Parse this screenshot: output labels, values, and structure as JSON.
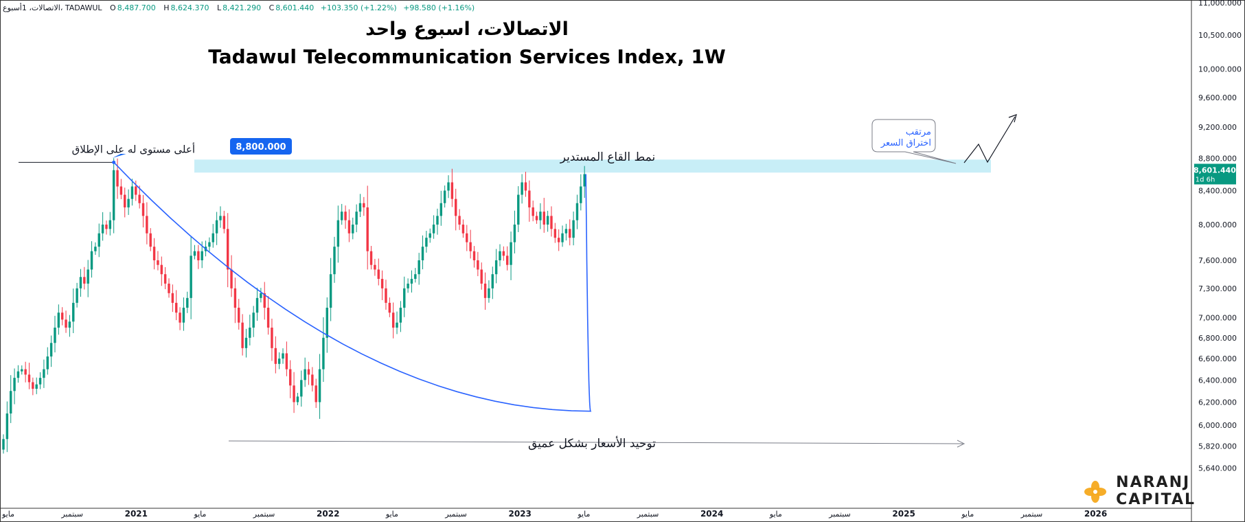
{
  "header": {
    "symbol_prefix": "الاتصالات، 1أسبوع،",
    "exchange": "TADAWUL",
    "open_label": "O",
    "open": "8,487.700",
    "high_label": "H",
    "high": "8,624.370",
    "low_label": "L",
    "low": "8,421.290",
    "close_label": "C",
    "close": "8,601.440",
    "change": "+103.350 (+1.22%)",
    "change2": "+98.580 (+1.16%)"
  },
  "title_ar": "الاتصالات، اسبوع واحد",
  "title_en": "Tadawul Telecommunication Services Index, 1W",
  "annotations": {
    "ath_label": "أعلى مستوى له على الإطلاق",
    "ath_price": "8,800.000",
    "rounding_bottom": "نمط القاع المستدير",
    "consolidation": "توحيد الأسعار بشكل عميق",
    "breakout_line1": "مرتقب",
    "breakout_line2": "اختراق السعر"
  },
  "price_tag": {
    "value": "8,601.440",
    "countdown": "1d 6h"
  },
  "logo": {
    "line1": "NARANJ",
    "line2": "CAPITAL"
  },
  "colors": {
    "up": "#089981",
    "down": "#f23645",
    "curve": "#2962ff",
    "zone": "#c8eef7",
    "tag": "#1565f0"
  },
  "chart_data": {
    "type": "candlestick",
    "title": "Tadawul Telecommunication Services Index, 1W",
    "y_scale": "log",
    "ylim": [
      5500,
      11000
    ],
    "y_ticks": [
      "11,000.000",
      "10,500.000",
      "10,000.000",
      "9,600.000",
      "9,200.000",
      "8,800.000",
      "8,400.000",
      "8,000.000",
      "7,600.000",
      "7,300.000",
      "7,000.000",
      "6,800.000",
      "6,600.000",
      "6,400.000",
      "6,200.000",
      "6,000.000",
      "5,820.000",
      "5,640.000"
    ],
    "y_tick_values": [
      11000,
      10500,
      10000,
      9600,
      9200,
      8800,
      8400,
      8000,
      7600,
      7300,
      7000,
      6800,
      6600,
      6400,
      6200,
      6000,
      5820,
      5640
    ],
    "x_ticks": [
      "مايو",
      "سبتمبر",
      "2021",
      "مايو",
      "سبتمبر",
      "2022",
      "مايو",
      "سبتمبر",
      "2023",
      "مايو",
      "سبتمبر",
      "2024",
      "مايو",
      "سبتمبر",
      "2025",
      "مايو",
      "سبتمبر",
      "2026"
    ],
    "x_tick_dates": [
      "2020-05",
      "2020-09",
      "2021-01",
      "2021-05",
      "2021-09",
      "2022-01",
      "2022-05",
      "2022-09",
      "2023-01",
      "2023-05",
      "2023-09",
      "2024-01",
      "2024-05",
      "2024-09",
      "2025-01",
      "2025-05",
      "2025-09",
      "2026-01"
    ],
    "x_range_dates": [
      "2020-05",
      "2026-06"
    ],
    "resistance_zone": [
      8620,
      8800
    ],
    "all_time_high": 8800,
    "last_close": 8601.44,
    "series_start_date": "2020-05",
    "closes": [
      5880,
      6100,
      6300,
      6420,
      6480,
      6500,
      6450,
      6380,
      6320,
      6360,
      6420,
      6500,
      6620,
      6750,
      6900,
      7050,
      6980,
      6900,
      6960,
      7150,
      7300,
      7420,
      7350,
      7500,
      7700,
      7750,
      7900,
      8000,
      7950,
      8050,
      8650,
      8450,
      8350,
      8200,
      8300,
      8450,
      8350,
      8250,
      8100,
      7900,
      7750,
      7600,
      7550,
      7450,
      7350,
      7250,
      7150,
      7050,
      6950,
      7100,
      7200,
      7650,
      7700,
      7600,
      7700,
      7750,
      7800,
      7900,
      8050,
      8100,
      7950,
      7500,
      7300,
      7100,
      6950,
      6700,
      6800,
      6900,
      7050,
      7200,
      7250,
      7100,
      6900,
      6700,
      6550,
      6600,
      6650,
      6500,
      6350,
      6200,
      6250,
      6400,
      6500,
      6450,
      6350,
      6200,
      6500,
      6800,
      7100,
      7450,
      7750,
      8050,
      8150,
      8050,
      7900,
      8000,
      8150,
      8250,
      8200,
      7700,
      7550,
      7500,
      7400,
      7300,
      7150,
      7050,
      6900,
      6950,
      7100,
      7300,
      7350,
      7400,
      7450,
      7600,
      7750,
      7850,
      7900,
      8000,
      8100,
      8250,
      8400,
      8500,
      8300,
      8100,
      8000,
      7900,
      7800,
      7700,
      7600,
      7500,
      7350,
      7200,
      7300,
      7450,
      7600,
      7700,
      7650,
      7550,
      7800,
      8000,
      8350,
      8500,
      8400,
      8200,
      8100,
      8050,
      8150,
      8000,
      8100,
      7950,
      7850,
      7800,
      7900,
      7950,
      7850,
      8050,
      8250,
      8450,
      8601
    ]
  }
}
